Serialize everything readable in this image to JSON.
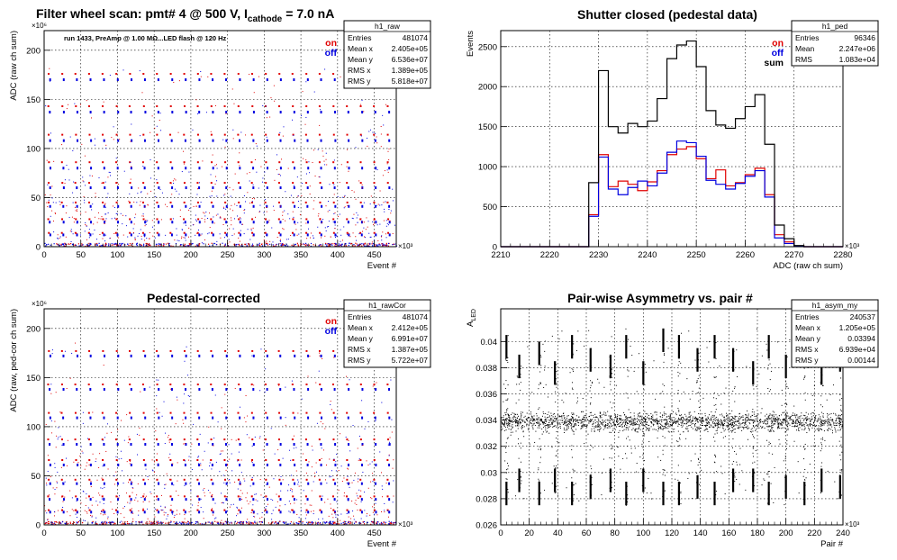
{
  "chart_data": [
    {
      "type": "scatter",
      "title": "Filter wheel scan: pmt#   4 @   500 V, I",
      "title_sub": "cathode",
      "title_tail": "= 7.0 nA",
      "subtitle": "run 1433, PreAmp @ 1.00 MΩ...LED flash @  120 Hz",
      "xlabel": "Event #",
      "ylabel": "ADC (raw ch sum)",
      "x_multiplier": "×10³",
      "y_multiplier": "×10⁶",
      "xlim": [
        0,
        480
      ],
      "ylim": [
        0,
        220
      ],
      "xticks": [
        0,
        50,
        100,
        150,
        200,
        250,
        300,
        350,
        400,
        450
      ],
      "yticks": [
        0,
        50,
        100,
        150,
        200
      ],
      "grid": true,
      "legend": [
        {
          "name": "on",
          "color": "#e00000"
        },
        {
          "name": "off",
          "color": "#0000e0"
        }
      ],
      "stats": {
        "name": "h1_raw",
        "rows": [
          [
            "Entries",
            "481074"
          ],
          [
            "Mean x",
            "2.405e+05"
          ],
          [
            "Mean y",
            "6.536e+07"
          ],
          [
            "RMS x",
            "1.389e+05"
          ],
          [
            "RMS y",
            "5.818e+07"
          ]
        ]
      },
      "levels": [
        {
          "on": 176,
          "off": 170
        },
        {
          "on": 143,
          "off": 137
        },
        {
          "on": 114,
          "off": 108
        },
        {
          "on": 86,
          "off": 80
        },
        {
          "on": 65,
          "off": 60
        },
        {
          "on": 45,
          "off": 41
        },
        {
          "on": 28,
          "off": 25
        },
        {
          "on": 14,
          "off": 12
        }
      ],
      "period": 18.5,
      "phase": 6
    },
    {
      "type": "line",
      "title": "Shutter closed (pedestal data)",
      "xlabel": "ADC (raw ch sum)",
      "ylabel": "Events",
      "x_multiplier": "×10³",
      "xlim": [
        2210,
        2280
      ],
      "ylim": [
        0,
        2700
      ],
      "xticks": [
        2210,
        2220,
        2230,
        2240,
        2250,
        2260,
        2270,
        2280
      ],
      "yticks": [
        0,
        500,
        1000,
        1500,
        2000,
        2500
      ],
      "grid": true,
      "legend": [
        {
          "name": "on",
          "color": "#e00000"
        },
        {
          "name": "off",
          "color": "#0000e0"
        },
        {
          "name": "sum",
          "color": "#000000"
        }
      ],
      "stats": {
        "name": "h1_ped",
        "rows": [
          [
            "Entries",
            "96346"
          ],
          [
            "Mean",
            "2.247e+06"
          ],
          [
            "RMS",
            "1.083e+04"
          ]
        ]
      },
      "x": [
        2226,
        2228,
        2230,
        2232,
        2234,
        2236,
        2238,
        2240,
        2242,
        2244,
        2246,
        2248,
        2250,
        2252,
        2254,
        2256,
        2258,
        2260,
        2262,
        2264,
        2266,
        2268,
        2270,
        2272
      ],
      "series": [
        {
          "name": "on",
          "color": "#e00000",
          "values": [
            0,
            400,
            1150,
            750,
            820,
            780,
            700,
            810,
            950,
            1150,
            1220,
            1250,
            1100,
            850,
            960,
            760,
            800,
            900,
            980,
            650,
            150,
            60,
            10,
            0
          ]
        },
        {
          "name": "off",
          "color": "#0000e0",
          "values": [
            0,
            380,
            1120,
            720,
            650,
            740,
            820,
            760,
            920,
            1180,
            1320,
            1300,
            1130,
            830,
            780,
            720,
            790,
            880,
            950,
            620,
            110,
            40,
            5,
            0
          ]
        },
        {
          "name": "sum",
          "color": "#000000",
          "values": [
            0,
            800,
            2200,
            1500,
            1420,
            1540,
            1500,
            1570,
            1850,
            2350,
            2520,
            2570,
            2250,
            1700,
            1520,
            1480,
            1600,
            1750,
            1900,
            1280,
            270,
            100,
            15,
            0
          ]
        }
      ]
    },
    {
      "type": "scatter",
      "title": "Pedestal-corrected",
      "xlabel": "Event #",
      "ylabel": "ADC (raw, ped-cor ch sum)",
      "x_multiplier": "×10³",
      "y_multiplier": "×10⁶",
      "xlim": [
        0,
        480
      ],
      "ylim": [
        0,
        220
      ],
      "xticks": [
        0,
        50,
        100,
        150,
        200,
        250,
        300,
        350,
        400,
        450
      ],
      "yticks": [
        0,
        50,
        100,
        150,
        200
      ],
      "grid": true,
      "legend": [
        {
          "name": "on",
          "color": "#e00000"
        },
        {
          "name": "off",
          "color": "#0000e0"
        }
      ],
      "stats": {
        "name": "h1_rawCor",
        "rows": [
          [
            "Entries",
            "481074"
          ],
          [
            "Mean x",
            "2.412e+05"
          ],
          [
            "Mean y",
            "6.991e+07"
          ],
          [
            "RMS x",
            "1.387e+05"
          ],
          [
            "RMS y",
            "5.722e+07"
          ]
        ]
      },
      "levels": [
        {
          "on": 177,
          "off": 172
        },
        {
          "on": 143,
          "off": 138
        },
        {
          "on": 114,
          "off": 109
        },
        {
          "on": 87,
          "off": 82
        },
        {
          "on": 66,
          "off": 61
        },
        {
          "on": 46,
          "off": 42
        },
        {
          "on": 29,
          "off": 26
        },
        {
          "on": 15,
          "off": 13
        }
      ],
      "period": 18.5,
      "phase": 6
    },
    {
      "type": "scatter",
      "title": "Pair-wise Asymmetry vs. pair #",
      "xlabel": "Pair #",
      "ylabel": "A",
      "ylabel_sub": "LED",
      "x_multiplier": "×10³",
      "xlim": [
        0,
        240
      ],
      "ylim": [
        0.026,
        0.0425
      ],
      "xticks": [
        0,
        20,
        40,
        60,
        80,
        100,
        120,
        140,
        160,
        180,
        200,
        220,
        240
      ],
      "yticks": [
        0.026,
        0.028,
        0.03,
        0.032,
        0.034,
        0.036,
        0.038,
        0.04
      ],
      "grid": true,
      "stats": {
        "name": "h1_asym_my",
        "rows": [
          [
            "Entries",
            "240537"
          ],
          [
            "Mean x",
            "1.205e+05"
          ],
          [
            "Mean y",
            "0.03394"
          ],
          [
            "RMS x",
            "6.939e+04"
          ],
          [
            "RMS y",
            "0.00144"
          ]
        ]
      },
      "band_center": 0.0339,
      "band_halfwidth": 0.0006,
      "spike_x": [
        4,
        13,
        27,
        38,
        50,
        63,
        77,
        88,
        100,
        114,
        125,
        138,
        150,
        163,
        177,
        188,
        200,
        213,
        225,
        238
      ],
      "spike_top": [
        0.0405,
        0.039,
        0.04,
        0.0385,
        0.0405,
        0.0395,
        0.039,
        0.0405,
        0.0385,
        0.041,
        0.0405,
        0.0395,
        0.0405,
        0.0395,
        0.0385,
        0.0405,
        0.039,
        0.0405,
        0.0385,
        0.0395
      ],
      "spike_bottom": [
        0.0275,
        0.0285,
        0.0275,
        0.0285,
        0.0275,
        0.028,
        0.0285,
        0.0275,
        0.0285,
        0.0275,
        0.0275,
        0.028,
        0.0275,
        0.0285,
        0.0285,
        0.0275,
        0.028,
        0.0275,
        0.0285,
        0.028
      ]
    }
  ]
}
